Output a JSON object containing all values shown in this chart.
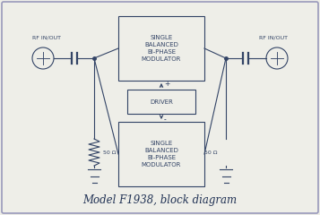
{
  "title": "Model F1938, block diagram",
  "bg_color": "#eeeee8",
  "border_color": "#9999bb",
  "line_color": "#334466",
  "box_fill": "#eeeee8",
  "left_rf_label": "RF IN/OUT",
  "right_rf_label": "RF IN/OUT",
  "left_50_label": "50 Ω",
  "right_50_label": "50 Ω",
  "mod_text": "SINGLE\nBALANCED\nBI-PHASE\nMODULATOR",
  "driver_text": "DRIVER",
  "mod2_text": "SINGLE\nBALANCED\nBI-PHASE\nMODULATOR",
  "plus_label": "+",
  "minus_label": "-"
}
